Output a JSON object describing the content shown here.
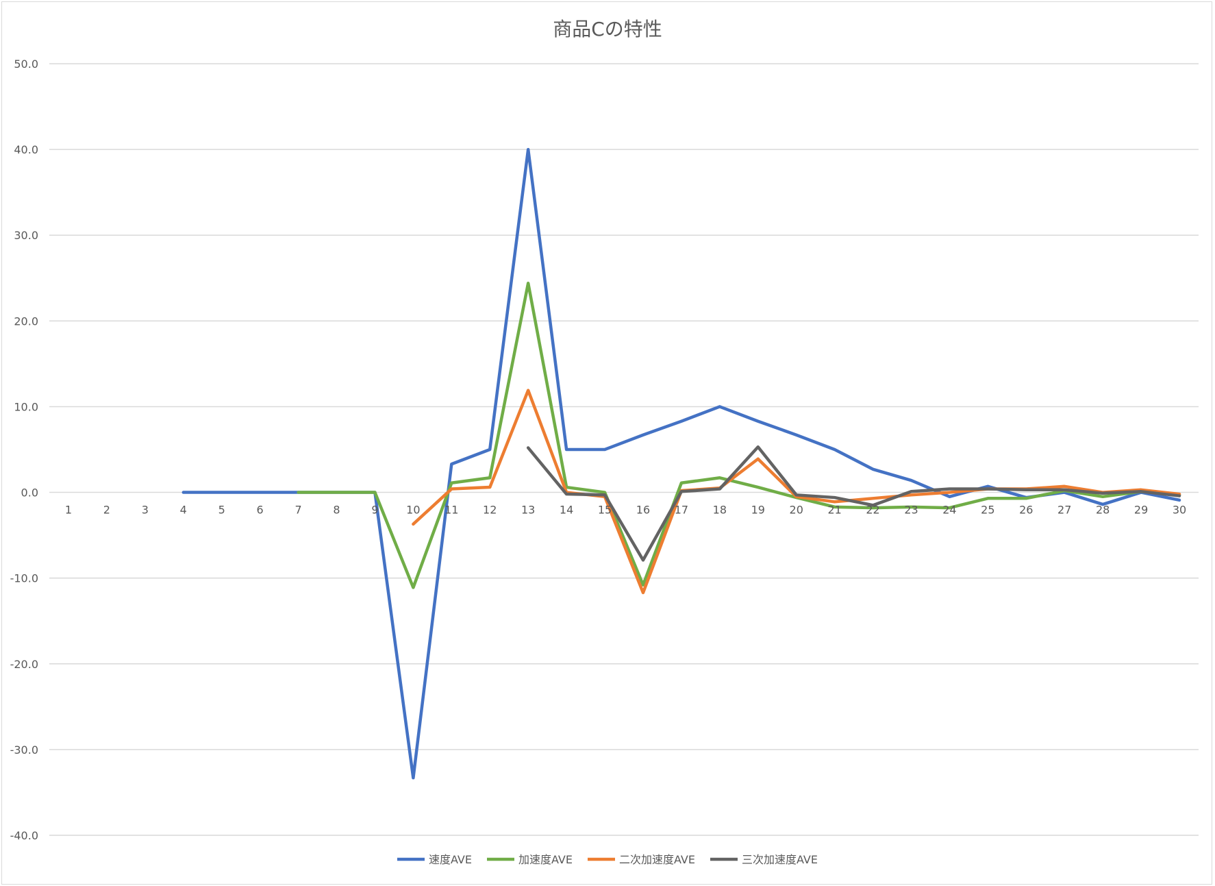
{
  "chart_data": {
    "type": "line",
    "title": "商品Cの特性",
    "xlabel": "",
    "ylabel": "",
    "categories": [
      "1",
      "2",
      "3",
      "4",
      "5",
      "6",
      "7",
      "8",
      "9",
      "10",
      "11",
      "12",
      "13",
      "14",
      "15",
      "16",
      "17",
      "18",
      "19",
      "20",
      "21",
      "22",
      "23",
      "24",
      "25",
      "26",
      "27",
      "28",
      "29",
      "30"
    ],
    "ylim": [
      -40,
      50
    ],
    "y_ticks": [
      "50.0",
      "40.0",
      "30.0",
      "20.0",
      "10.0",
      "0.0",
      "-10.0",
      "-20.0",
      "-30.0",
      "-40.0"
    ],
    "grid": true,
    "legend_position": "bottom",
    "series": [
      {
        "name": "速度AVE",
        "color": "#4472c4",
        "values": [
          null,
          null,
          null,
          0,
          0,
          0,
          0,
          0,
          0,
          -33.3,
          3.3,
          5.0,
          40.0,
          5.0,
          5.0,
          6.7,
          8.3,
          10.0,
          8.3,
          6.7,
          5.0,
          2.7,
          1.4,
          -0.5,
          0.7,
          -0.6,
          0,
          -1.4,
          0,
          -0.9
        ]
      },
      {
        "name": "加速度AVE",
        "color": "#70ad47",
        "values": [
          null,
          null,
          null,
          null,
          null,
          null,
          0,
          0,
          0,
          -11.1,
          1.1,
          1.7,
          24.4,
          0.6,
          0,
          -10.8,
          1.1,
          1.7,
          0.6,
          -0.6,
          -1.7,
          -1.8,
          -1.7,
          -1.8,
          -0.7,
          -0.7,
          0.2,
          -0.5,
          0.1,
          -0.3
        ]
      },
      {
        "name": "二次加速度AVE",
        "color": "#ed7d31",
        "values": [
          null,
          null,
          null,
          null,
          null,
          null,
          null,
          null,
          null,
          -3.7,
          0.4,
          0.6,
          11.9,
          0,
          -0.5,
          -11.7,
          0.2,
          0.5,
          3.9,
          -0.5,
          -1.1,
          -0.7,
          -0.3,
          0,
          0.4,
          0.4,
          0.7,
          0,
          0.3,
          -0.2
        ]
      },
      {
        "name": "三次加速度AVE",
        "color": "#636363",
        "values": [
          null,
          null,
          null,
          null,
          null,
          null,
          null,
          null,
          null,
          null,
          null,
          null,
          5.2,
          -0.2,
          -0.3,
          -7.9,
          0.1,
          0.4,
          5.3,
          -0.3,
          -0.6,
          -1.5,
          0.1,
          0.4,
          0.4,
          0.3,
          0.3,
          -0.1,
          0.1,
          -0.4
        ]
      }
    ]
  }
}
